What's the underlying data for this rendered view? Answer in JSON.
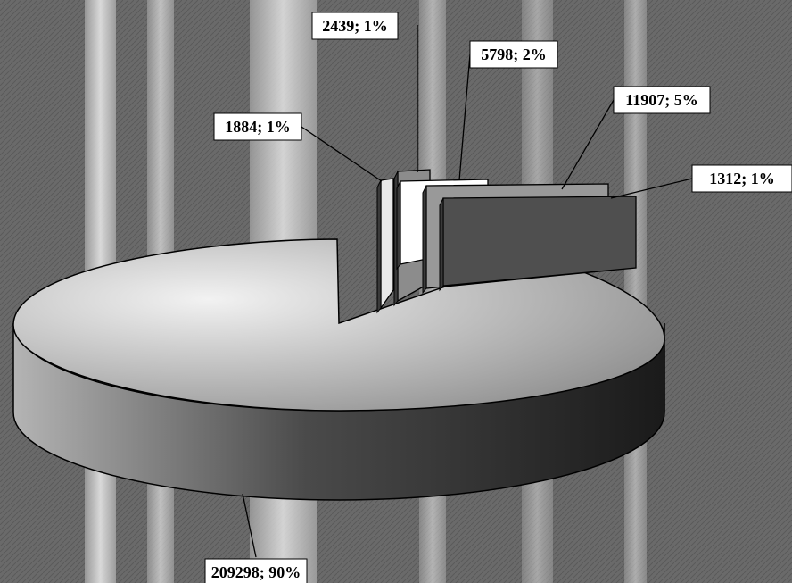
{
  "chart_data": {
    "type": "pie",
    "title": "",
    "three_d": true,
    "exploded": true,
    "legend": "none",
    "label_format": "value; percent",
    "background": "forest photograph (birch trunks), grayscale",
    "slices": [
      {
        "value": 209298,
        "percent": "90%",
        "label": "209298; 90%",
        "color": "#bdbdbd"
      },
      {
        "value": 1884,
        "percent": "1%",
        "label": "1884; 1%",
        "color": "#e8e8e8"
      },
      {
        "value": 2439,
        "percent": "1%",
        "label": "2439; 1%",
        "color": "#8a8a8a"
      },
      {
        "value": 5798,
        "percent": "2%",
        "label": "5798; 2%",
        "color": "#ffffff"
      },
      {
        "value": 11907,
        "percent": "5%",
        "label": "11907; 5%",
        "color": "#9a9a9a"
      },
      {
        "value": 1312,
        "percent": "1%",
        "label": "1312; 1%",
        "color": "#5a5a5a"
      }
    ]
  }
}
